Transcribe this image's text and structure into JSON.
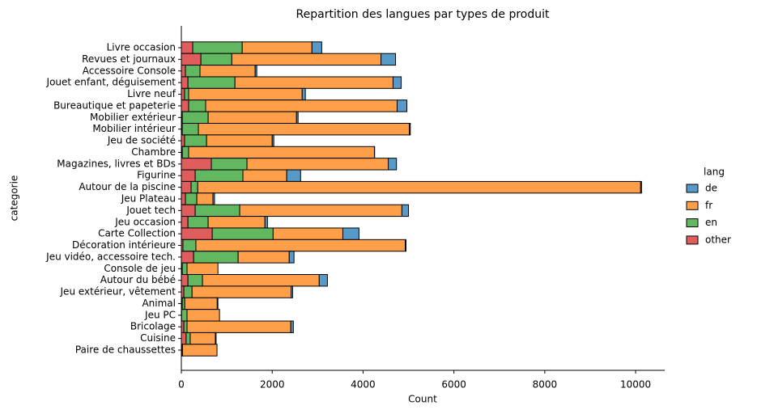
{
  "chart_data": {
    "type": "stacked_barh",
    "title": "Repartition des langues par types de produit",
    "xlabel": "Count",
    "ylabel": "categorie",
    "legend_title": "lang",
    "legend_position": "right",
    "categories": [
      "Livre occasion",
      "Revues et journaux",
      "Accessoire Console",
      "Jouet enfant, déguisement",
      "Livre neuf",
      "Bureautique et papeterie",
      "Mobilier extérieur",
      "Mobilier intérieur",
      "Jeu de société",
      "Chambre",
      "Magazines, livres et BDs",
      "Figurine",
      "Autour de la piscine",
      "Jeu Plateau",
      "Jouet tech",
      "Jeu occasion",
      "Carte Collection",
      "Décoration intérieure",
      "Jeu vidéo, accessoire tech.",
      "Console de jeu",
      "Autour du bébé",
      "Jeu extérieur, vêtement",
      "Animal",
      "Jeu PC",
      "Bricolage",
      "Cuisine",
      "Paire de chaussettes"
    ],
    "series": [
      {
        "name": "de",
        "color": "#5799c7",
        "values": [
          215,
          320,
          35,
          180,
          70,
          215,
          35,
          20,
          35,
          5,
          180,
          305,
          20,
          35,
          145,
          55,
          355,
          15,
          105,
          0,
          180,
          35,
          15,
          0,
          55,
          15,
          0
        ]
      },
      {
        "name": "fr",
        "color": "#ff9f4a",
        "values": [
          1535,
          3285,
          1215,
          3480,
          2500,
          4215,
          1945,
          4645,
          1445,
          4090,
          3110,
          965,
          9750,
          355,
          3570,
          1250,
          1535,
          4610,
          1125,
          680,
          2570,
          2180,
          715,
          715,
          2285,
          555,
          760
        ]
      },
      {
        "name": "en",
        "color": "#61b861",
        "values": [
          1090,
          680,
          320,
          1035,
          90,
          375,
          570,
          355,
          485,
          140,
          785,
          1050,
          145,
          250,
          980,
          445,
          1340,
          285,
          980,
          105,
          320,
          180,
          55,
          120,
          70,
          90,
          5
        ]
      },
      {
        "name": "other",
        "color": "#e05d5e",
        "values": [
          250,
          430,
          90,
          145,
          70,
          160,
          20,
          20,
          70,
          20,
          660,
          305,
          215,
          90,
          305,
          145,
          680,
          35,
          270,
          20,
          145,
          55,
          20,
          5,
          55,
          105,
          20
        ]
      }
    ],
    "xlim": [
      0,
      10640
    ],
    "xticks": [
      0,
      2000,
      4000,
      6000,
      8000,
      10000
    ]
  }
}
